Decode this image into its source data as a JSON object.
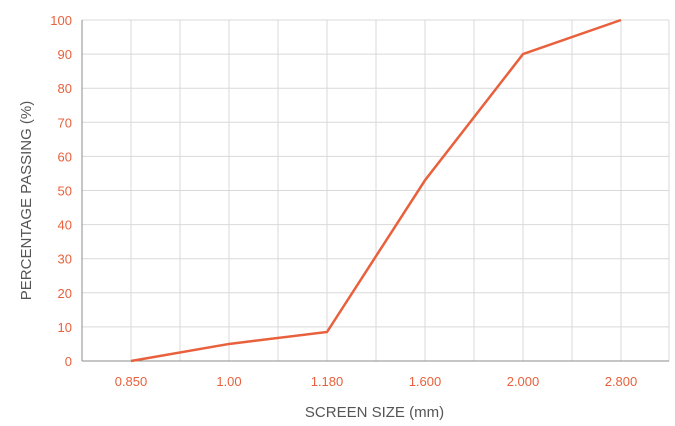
{
  "chart_data": {
    "type": "line",
    "categories": [
      "0.850",
      "1.00",
      "1.180",
      "1.600",
      "2.000",
      "2.800"
    ],
    "series": [
      {
        "values": [
          0,
          5,
          8.5,
          53,
          90,
          100
        ]
      }
    ],
    "xlabel": "SCREEN SIZE (mm)",
    "ylabel": "PERCENTAGE PASSING (%)",
    "yticks": [
      "0",
      "10",
      "20",
      "30",
      "40",
      "50",
      "60",
      "70",
      "80",
      "90",
      "100"
    ],
    "ylim": [
      0,
      100
    ],
    "grid": true,
    "colors": {
      "line": "#e8603c",
      "tick_labels": "#e8603c",
      "axis_title": "#555555"
    }
  }
}
